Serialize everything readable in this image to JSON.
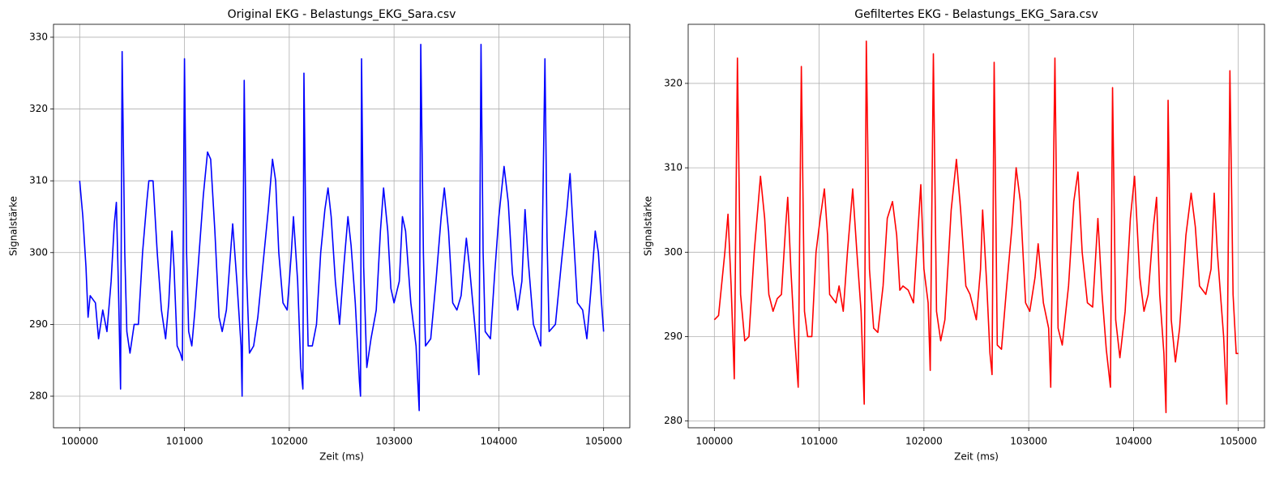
{
  "chart_data": [
    {
      "type": "line",
      "title": "Original EKG - Belastungs_EKG_Sara.csv",
      "x_label": "Zeit (ms)",
      "y_label": "Signalstärke",
      "color": "#0000ff",
      "grid": true,
      "xlim": [
        99750,
        105250
      ],
      "ylim": [
        275.6,
        331.8
      ],
      "xticks": [
        100000,
        101000,
        102000,
        103000,
        104000,
        105000
      ],
      "yticks": [
        280,
        290,
        300,
        310,
        320,
        330
      ],
      "x": [
        100000,
        100030,
        100060,
        100080,
        100100,
        100150,
        100180,
        100220,
        100260,
        100300,
        100330,
        100350,
        100370,
        100390,
        100405,
        100430,
        100450,
        100480,
        100520,
        100560,
        100600,
        100640,
        100660,
        100700,
        100740,
        100780,
        100820,
        100850,
        100870,
        100880,
        100900,
        100930,
        100960,
        100980,
        101000,
        101020,
        101040,
        101070,
        101100,
        101140,
        101180,
        101220,
        101250,
        101290,
        101330,
        101360,
        101400,
        101440,
        101460,
        101500,
        101540,
        101550,
        101570,
        101590,
        101620,
        101660,
        101700,
        101760,
        101800,
        101840,
        101870,
        101900,
        101940,
        101980,
        102020,
        102040,
        102080,
        102110,
        102130,
        102140,
        102160,
        102180,
        102220,
        102260,
        102300,
        102340,
        102370,
        102400,
        102440,
        102480,
        102520,
        102560,
        102590,
        102630,
        102670,
        102680,
        102690,
        102710,
        102740,
        102780,
        102830,
        102870,
        102900,
        102940,
        102970,
        103000,
        103050,
        103080,
        103110,
        103160,
        103210,
        103240,
        103255,
        103280,
        103300,
        103350,
        103400,
        103450,
        103480,
        103520,
        103560,
        103600,
        103640,
        103690,
        103720,
        103770,
        103810,
        103830,
        103850,
        103870,
        103920,
        103960,
        104000,
        104050,
        104090,
        104130,
        104180,
        104220,
        104250,
        104280,
        104330,
        104400,
        104440,
        104460,
        104480,
        104540,
        104600,
        104650,
        104680,
        104710,
        104750,
        104800,
        104840,
        104880,
        104920,
        104950,
        104980,
        105000
      ],
      "values": [
        310,
        305,
        298,
        291,
        294,
        293,
        288,
        292,
        289,
        296,
        304,
        307,
        295,
        281,
        328,
        300,
        289,
        286,
        290,
        290,
        300,
        307,
        310,
        310,
        300,
        292,
        288,
        293,
        299,
        303,
        298,
        287,
        286,
        285,
        327,
        300,
        289,
        287,
        292,
        300,
        308,
        314,
        313,
        303,
        291,
        289,
        292,
        300,
        304,
        296,
        287,
        280,
        324,
        298,
        286,
        287,
        291,
        300,
        306,
        313,
        310,
        300,
        293,
        292,
        300,
        305,
        296,
        284,
        281,
        325,
        300,
        287,
        287,
        290,
        300,
        306,
        309,
        305,
        296,
        290,
        298,
        305,
        301,
        293,
        282,
        280,
        327,
        298,
        284,
        288,
        292,
        303,
        309,
        303,
        295,
        293,
        296,
        305,
        303,
        293,
        287,
        278,
        329,
        300,
        287,
        288,
        296,
        305,
        309,
        303,
        293,
        292,
        294,
        302,
        298,
        290,
        283,
        329,
        300,
        289,
        288,
        297,
        305,
        312,
        307,
        297,
        292,
        296,
        306,
        299,
        290,
        287,
        327,
        302,
        289,
        290,
        299,
        306,
        311,
        303,
        293,
        292,
        288,
        295,
        303,
        300,
        293,
        289
      ]
    },
    {
      "type": "line",
      "title": "Gefiltertes EKG - Belastungs_EKG_Sara.csv",
      "x_label": "Zeit (ms)",
      "y_label": "Signalstärke",
      "color": "#ff0000",
      "grid": true,
      "xlim": [
        99750,
        105250
      ],
      "ylim": [
        279.2,
        327
      ],
      "xticks": [
        100000,
        101000,
        102000,
        103000,
        104000,
        105000
      ],
      "yticks": [
        280,
        290,
        300,
        310,
        320
      ],
      "x": [
        100000,
        100040,
        100100,
        100130,
        100160,
        100190,
        100220,
        100250,
        100290,
        100330,
        100380,
        100440,
        100480,
        100520,
        100560,
        100600,
        100640,
        100680,
        100700,
        100730,
        100760,
        100800,
        100830,
        100860,
        100890,
        100930,
        100970,
        101010,
        101050,
        101080,
        101100,
        101160,
        101190,
        101230,
        101270,
        101320,
        101360,
        101400,
        101430,
        101450,
        101480,
        101520,
        101560,
        101610,
        101650,
        101700,
        101740,
        101770,
        101800,
        101850,
        101900,
        101940,
        101970,
        102000,
        102040,
        102060,
        102090,
        102120,
        102160,
        102200,
        102260,
        102310,
        102350,
        102400,
        102440,
        102500,
        102540,
        102560,
        102600,
        102630,
        102650,
        102670,
        102700,
        102740,
        102790,
        102840,
        102880,
        102920,
        102970,
        103010,
        103060,
        103090,
        103140,
        103190,
        103210,
        103250,
        103280,
        103320,
        103380,
        103430,
        103470,
        103510,
        103560,
        103610,
        103660,
        103700,
        103740,
        103780,
        103800,
        103830,
        103870,
        103920,
        103970,
        104010,
        104060,
        104100,
        104140,
        104190,
        104220,
        104250,
        104290,
        104310,
        104330,
        104360,
        104400,
        104440,
        104500,
        104550,
        104590,
        104630,
        104690,
        104740,
        104770,
        104800,
        104860,
        104890,
        104920,
        104950,
        104980,
        105000
      ],
      "values": [
        292,
        292.5,
        300,
        304.5,
        296,
        285,
        323,
        295,
        289.5,
        290,
        300,
        309,
        304,
        295,
        293,
        294.5,
        295,
        303,
        306.5,
        298,
        291,
        284,
        322,
        293,
        290,
        290,
        300,
        304,
        307.5,
        302,
        295,
        294,
        296,
        293,
        300,
        307.5,
        300,
        293,
        282,
        325,
        298,
        291,
        290.5,
        296,
        304,
        306,
        302,
        295.5,
        296,
        295.5,
        294,
        302,
        308,
        298,
        294,
        286,
        323.5,
        293,
        289.5,
        292,
        305,
        311,
        305,
        296,
        295,
        292,
        298,
        305,
        296,
        288,
        285.5,
        322.5,
        289,
        288.5,
        296,
        303,
        310,
        306,
        294,
        293,
        297,
        301,
        294,
        291,
        284,
        323,
        291,
        289,
        296,
        306,
        309.5,
        300,
        294,
        293.5,
        304,
        295,
        288.5,
        284,
        319.5,
        292,
        287.5,
        293,
        304,
        309,
        297,
        293,
        295,
        303,
        306.5,
        295,
        288,
        281,
        318,
        292,
        287,
        291,
        302,
        307,
        303,
        296,
        295,
        298,
        307,
        300,
        290,
        282,
        321.5,
        295,
        288,
        288
      ]
    }
  ]
}
